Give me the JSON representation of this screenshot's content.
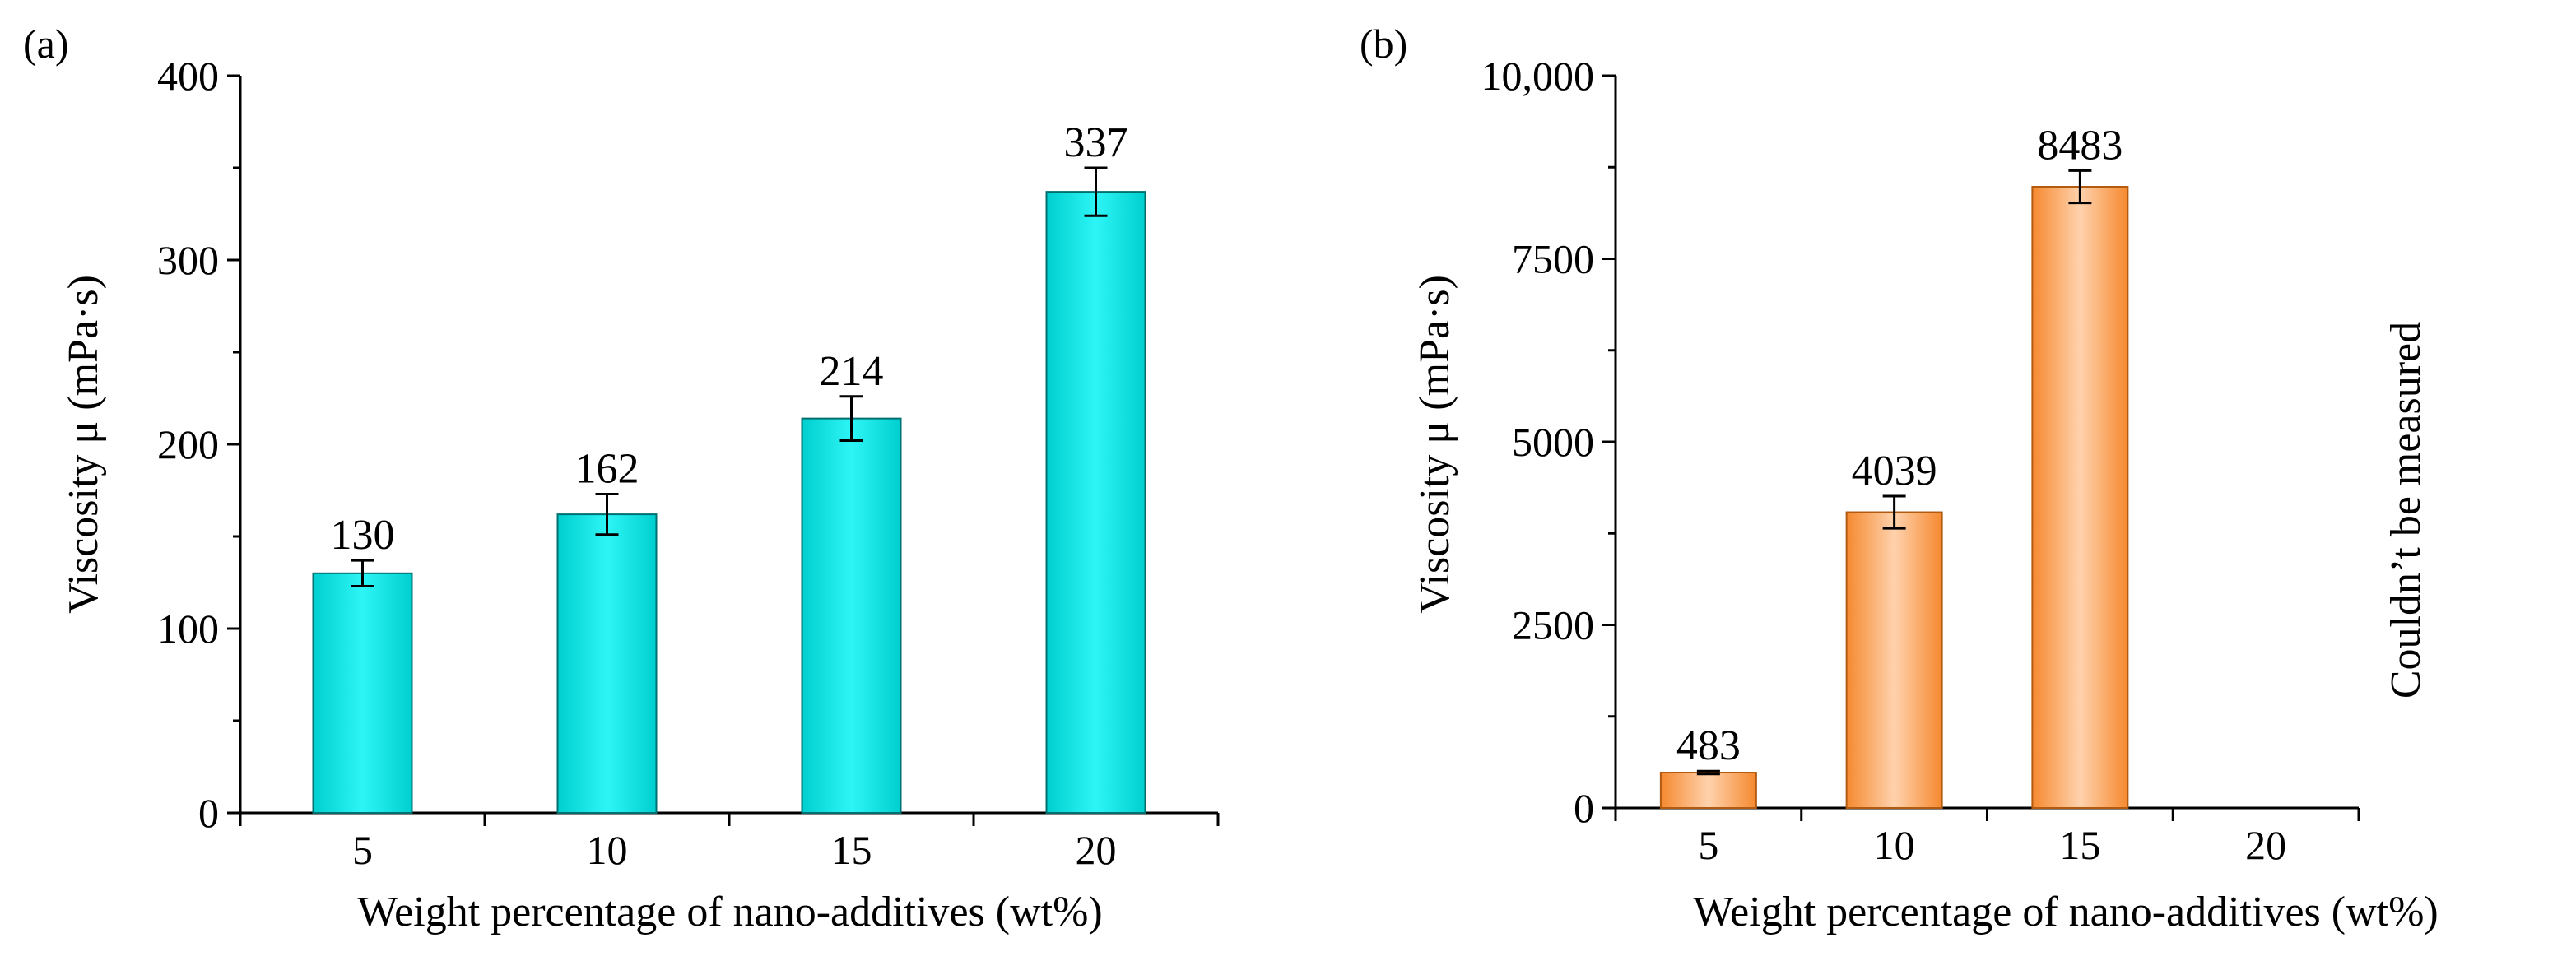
{
  "chart_data": [
    {
      "type": "bar",
      "panel_label": "(a)",
      "categories": [
        "5",
        "10",
        "15",
        "20"
      ],
      "values": [
        130,
        162,
        214,
        337
      ],
      "errors": [
        7,
        11,
        12,
        13
      ],
      "data_labels": [
        "130",
        "162",
        "214",
        "337"
      ],
      "xlabel": "Weight  percentage of nano-additives (wt%)",
      "ylabel": "Viscosity μ (mPa·s)",
      "ylim": [
        0,
        400
      ],
      "yticks": [
        0,
        100,
        200,
        300,
        400
      ],
      "ytick_labels": [
        "0",
        "100",
        "200",
        "300",
        "400"
      ],
      "grid": false,
      "bar_color": "#00cfcf",
      "bar_highlight": "#2ef5f5",
      "bar_edge": "#006f6f"
    },
    {
      "type": "bar",
      "panel_label": "(b)",
      "categories": [
        "5",
        "10",
        "15",
        "20"
      ],
      "values": [
        483,
        4039,
        8483,
        null
      ],
      "errors": [
        20,
        220,
        220,
        null
      ],
      "data_labels": [
        "483",
        "4039",
        "8483",
        ""
      ],
      "xlabel": "Weight  percentage of nano-additives (wt%)",
      "ylabel": "Viscosity μ (mPa·s)",
      "ylim": [
        0,
        10000
      ],
      "yticks": [
        0,
        2500,
        5000,
        7500,
        10000
      ],
      "ytick_labels": [
        "0",
        "2500",
        "5000",
        "7500",
        "10,000"
      ],
      "annotation": "Couldn’t be measured",
      "grid": false,
      "bar_color": "#f5892f",
      "bar_highlight": "#ffd2ad",
      "bar_edge": "#b25a10"
    }
  ]
}
